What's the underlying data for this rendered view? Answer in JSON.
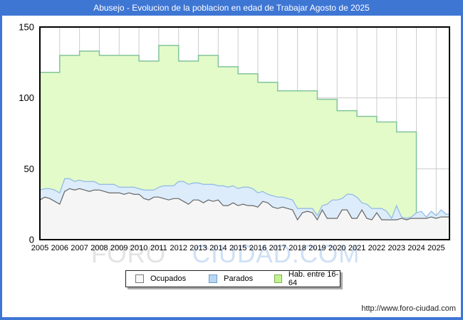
{
  "window": {
    "title": "Abusejo - Evolucion de la poblacion en edad de Trabajar Agosto de 2025",
    "footer_url": "http://www.foro-ciudad.com",
    "accent_color": "#3e76d4"
  },
  "watermark": {
    "part1": "FORO",
    "part2": "CIUDAD.COM"
  },
  "legend": {
    "items": [
      {
        "label": "Ocupados",
        "fill": "#f8f8f8",
        "border": "#777777"
      },
      {
        "label": "Parados",
        "fill": "#b9d7f2",
        "border": "#6f9ec9"
      },
      {
        "label": "Hab. entre 16-64",
        "fill": "#c4f293",
        "border": "#7ab34f"
      }
    ]
  },
  "chart_data": {
    "type": "area",
    "title": "Abusejo - Evolucion de la poblacion en edad de Trabajar Agosto de 2025",
    "xlabel": "",
    "ylabel": "",
    "x_axis": {
      "tick_labels": [
        "2005",
        "2006",
        "2007",
        "2008",
        "2009",
        "2010",
        "2011",
        "2012",
        "2013",
        "2014",
        "2015",
        "2016",
        "2017",
        "2018",
        "2019",
        "2020",
        "2021",
        "2022",
        "2023",
        "2024",
        "2025"
      ],
      "range_years": [
        2005,
        2025.67
      ]
    },
    "y_axis": {
      "tick_values": [
        0,
        50,
        100,
        150
      ],
      "range": [
        0,
        150
      ]
    },
    "grid": true,
    "legend_position": "bottom",
    "colors": {
      "plot_border": "#000000",
      "gridline": "#cccccc",
      "green_fill": "#e3fbc9",
      "green_stroke": "#82c49c",
      "blue_fill": "#dcecfa",
      "blue_stroke": "#8fb8e4",
      "gray_fill": "#f5f5f5",
      "gray_stroke": "#666666"
    },
    "series": [
      {
        "name": "Ocupados",
        "sampling": "quarterly",
        "x_start": 2005,
        "x_step_years": 0.25,
        "x_end": 2025.67,
        "values": [
          28,
          30,
          29,
          27,
          25,
          34,
          36,
          35,
          36,
          35,
          34,
          35,
          35,
          34,
          33,
          33,
          33,
          32,
          33,
          32,
          32,
          29,
          28,
          30,
          30,
          29,
          28,
          29,
          29,
          27,
          25,
          28,
          28,
          26,
          28,
          27,
          28,
          24,
          24,
          26,
          24,
          25,
          24,
          24,
          23,
          27,
          26,
          23,
          22,
          23,
          22,
          21,
          14,
          19,
          20,
          19,
          14,
          21,
          15,
          15,
          15,
          21,
          21,
          15,
          15,
          21,
          15,
          14,
          19,
          14,
          14,
          14,
          14,
          15,
          14,
          15,
          15,
          15,
          15,
          16,
          15,
          16,
          16,
          16
        ]
      },
      {
        "name": "Parados",
        "stacked_on": "Ocupados",
        "sampling": "quarterly",
        "x_start": 2005,
        "x_step_years": 0.25,
        "x_end": 2025.67,
        "values": [
          7,
          6,
          7,
          8,
          8,
          9,
          7,
          6,
          6,
          6,
          7,
          6,
          4,
          5,
          6,
          6,
          4,
          5,
          4,
          5,
          4,
          6,
          7,
          5,
          7,
          9,
          10,
          9,
          12,
          14,
          14,
          12,
          12,
          13,
          11,
          12,
          10,
          14,
          13,
          12,
          12,
          12,
          13,
          12,
          10,
          7,
          6,
          8,
          8,
          7,
          7,
          7,
          8,
          3,
          2,
          3,
          3,
          3,
          10,
          13,
          13,
          8,
          11,
          17,
          15,
          5,
          10,
          8,
          3,
          8,
          6,
          1,
          10,
          1,
          1,
          1,
          4,
          5,
          1,
          4,
          2,
          5,
          2,
          2
        ]
      },
      {
        "name": "Hab. entre 16-64",
        "sampling": "annual_steps",
        "years": [
          2005,
          2006,
          2007,
          2008,
          2009,
          2010,
          2011,
          2012,
          2013,
          2014,
          2015,
          2016,
          2017,
          2018,
          2019,
          2020,
          2021,
          2022,
          2023
        ],
        "values": [
          118,
          130,
          133,
          130,
          130,
          126,
          137,
          126,
          130,
          122,
          117,
          111,
          105,
          105,
          99,
          91,
          87,
          83,
          76
        ],
        "ends_at_year": 2024
      }
    ]
  }
}
